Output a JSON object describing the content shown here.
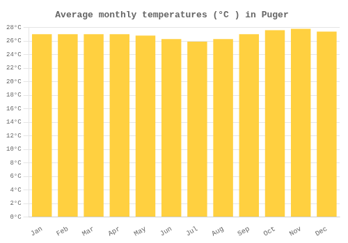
{
  "chart_data": {
    "type": "bar",
    "title": "Average monthly temperatures (°C ) in Puger",
    "categories": [
      "Jan",
      "Feb",
      "Mar",
      "Apr",
      "May",
      "Jun",
      "Jul",
      "Aug",
      "Sep",
      "Oct",
      "Nov",
      "Dec"
    ],
    "values": [
      27.0,
      27.0,
      27.0,
      27.0,
      26.8,
      26.3,
      25.9,
      26.3,
      27.0,
      27.6,
      27.8,
      27.4
    ],
    "color": "#FFD040",
    "ylim": [
      0,
      28
    ],
    "yticks": [
      {
        "value": 0,
        "label": "0°C"
      },
      {
        "value": 2,
        "label": "2°C"
      },
      {
        "value": 4,
        "label": "4°C"
      },
      {
        "value": 6,
        "label": "6°C"
      },
      {
        "value": 8,
        "label": "8°C"
      },
      {
        "value": 10,
        "label": "10°C"
      },
      {
        "value": 12,
        "label": "12°C"
      },
      {
        "value": 14,
        "label": "14°C"
      },
      {
        "value": 16,
        "label": "16°C"
      },
      {
        "value": 18,
        "label": "18°C"
      },
      {
        "value": 20,
        "label": "20°C"
      },
      {
        "value": 22,
        "label": "22°C"
      },
      {
        "value": 24,
        "label": "24°C"
      },
      {
        "value": 26,
        "label": "26°C"
      },
      {
        "value": 28,
        "label": "28°C"
      }
    ],
    "grid": true
  }
}
